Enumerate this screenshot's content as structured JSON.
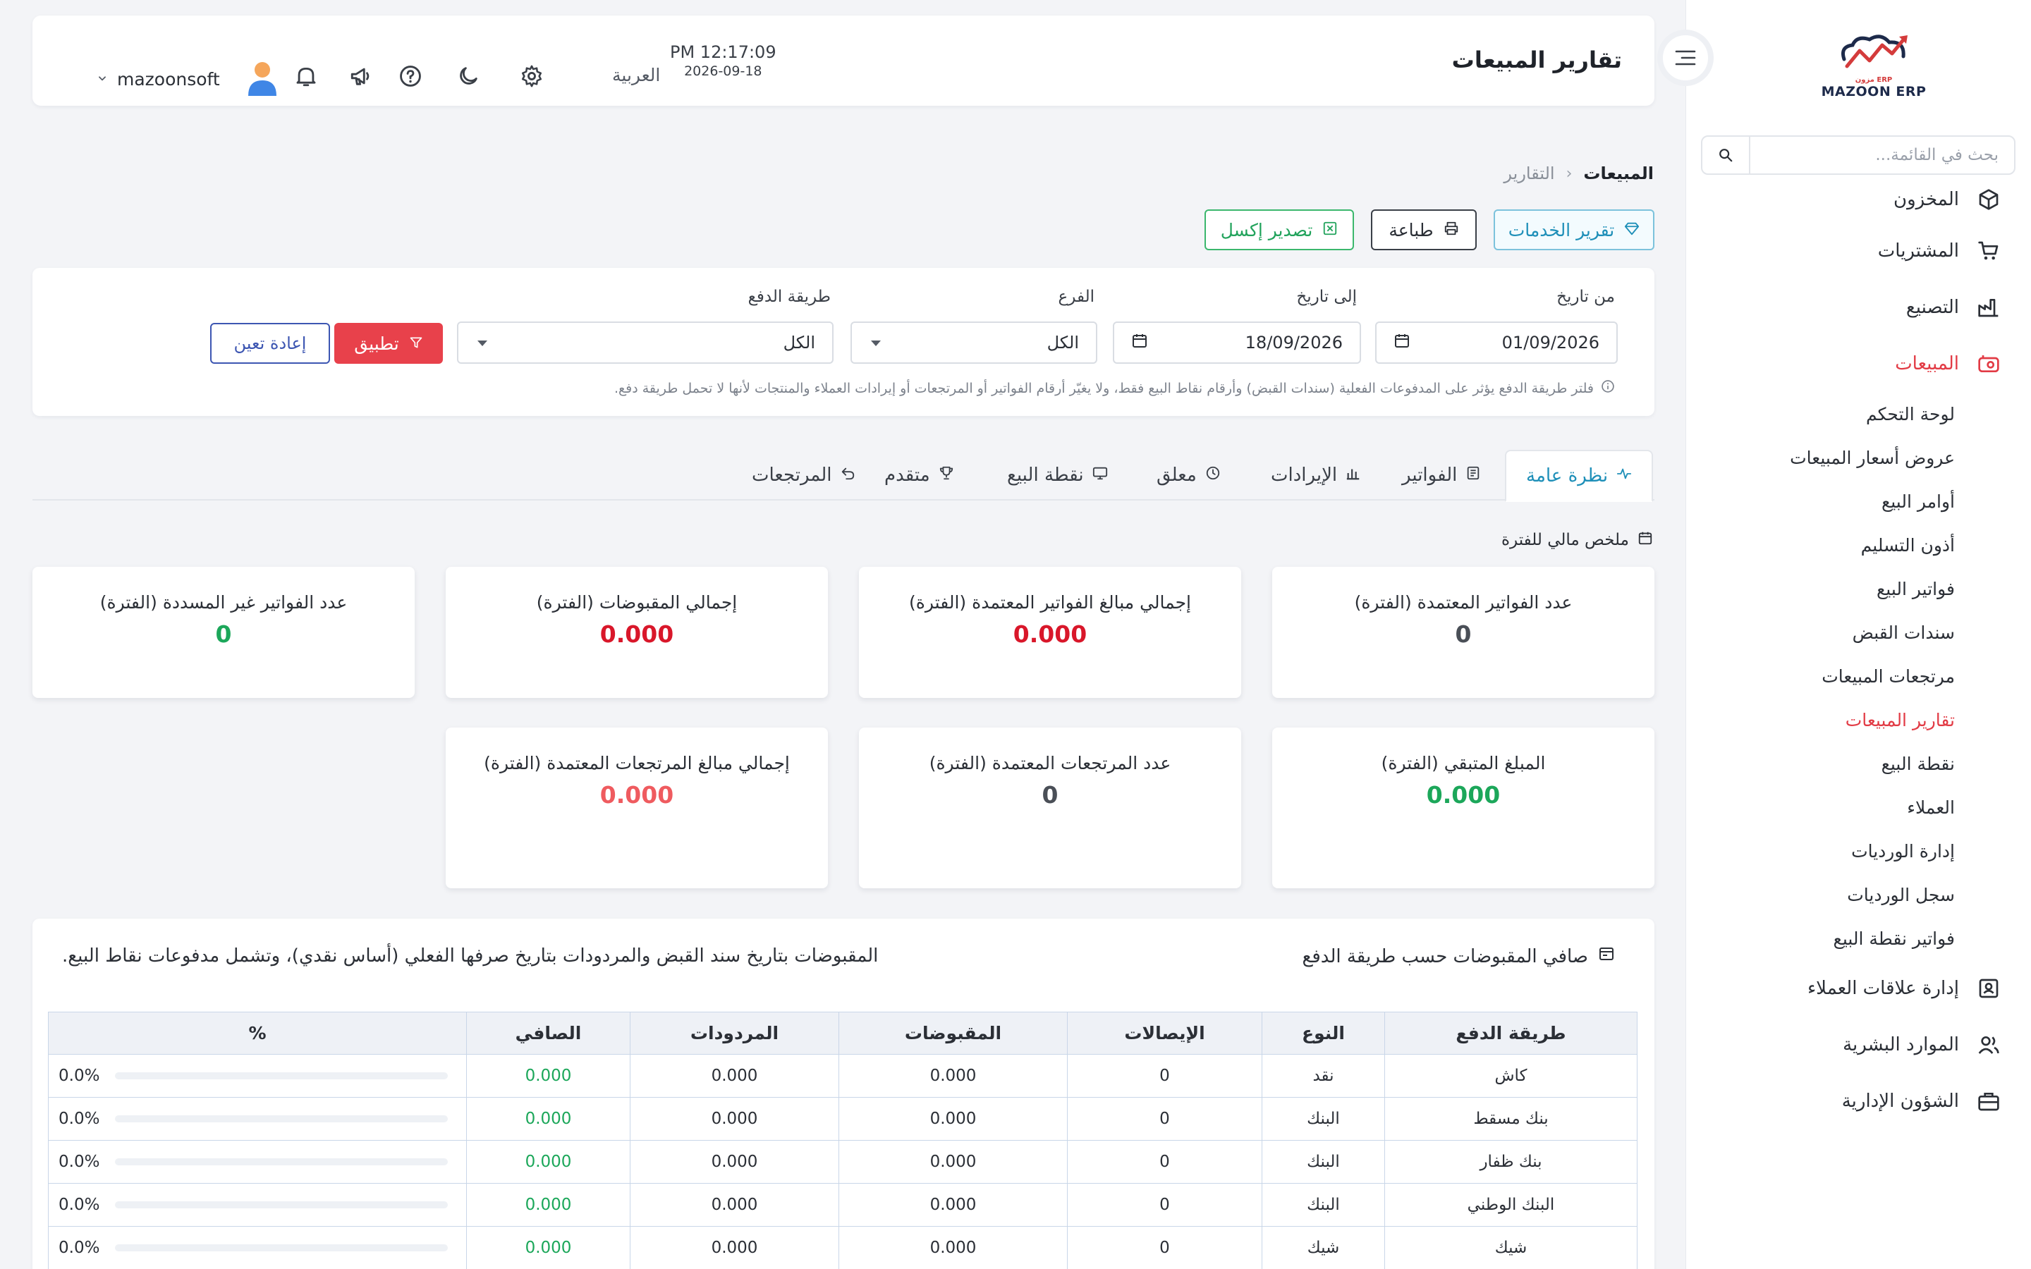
{
  "app": {
    "brand": "MAZOON ERP",
    "brand_arabic": "مزون ERP"
  },
  "sidebar": {
    "search_placeholder": "بحث في القائمة...",
    "items": [
      {
        "label": "المخزون",
        "icon": "box-icon"
      },
      {
        "label": "المشتريات",
        "icon": "cart-icon"
      },
      {
        "label": "التصنيع",
        "icon": "factory-icon"
      },
      {
        "label": "المبيعات",
        "icon": "sales-icon"
      },
      {
        "label": "إدارة علاقات العملاء",
        "icon": "contacts-icon"
      },
      {
        "label": "الموارد البشرية",
        "icon": "users-icon"
      },
      {
        "label": "الشؤون الإدارية",
        "icon": "briefcase-icon"
      }
    ],
    "sales_sub": [
      "لوحة التحكم",
      "عروض أسعار المبيعات",
      "أوامر البيع",
      "أذون التسليم",
      "فواتير البيع",
      "سندات القبض",
      "مرتجعات المبيعات",
      "تقارير المبيعات",
      "نقطة البيع",
      "العملاء",
      "إدارة الورديات",
      "سجل الورديات",
      "فواتير نقطة البيع"
    ],
    "active_color": "#e23b45"
  },
  "header": {
    "title": "تقارير المبيعات",
    "time": "PM 12:17:09",
    "date": "2026-09-18",
    "language": "العربية",
    "username": "mazoonsoft"
  },
  "breadcrumb": {
    "parent": "المبيعات",
    "current": "التقارير"
  },
  "actions": {
    "services_report": "تقرير الخدمات",
    "print": "طباعة",
    "export_excel": "تصدير إكسل"
  },
  "filters": {
    "from_label": "من تاريخ",
    "from_value": "01/09/2026",
    "to_label": "إلى تاريخ",
    "to_value": "18/09/2026",
    "branch_label": "الفرع",
    "branch_value": "الكل",
    "payment_label": "طريقة الدفع",
    "payment_value": "الكل",
    "apply": "تطبيق",
    "reset": "إعادة تعين",
    "note": "فلتر طريقة الدفع يؤثر على المدفوعات الفعلية (سندات القبض) وأرقام نقاط البيع فقط، ولا يغيّر أرقام الفواتير أو المرتجعات أو إيرادات العملاء والمنتجات لأنها لا تحمل طريقة دفع."
  },
  "tabs": [
    {
      "label": "نظرة عامة",
      "icon": "pulse-icon"
    },
    {
      "label": "الفواتير",
      "icon": "invoice-icon"
    },
    {
      "label": "الإيرادات",
      "icon": "bar-chart-icon"
    },
    {
      "label": "معلق",
      "icon": "clock-icon"
    },
    {
      "label": "نقطة البيع",
      "icon": "monitor-icon"
    },
    {
      "label": "متقدم",
      "icon": "trophy-icon"
    },
    {
      "label": "المرتجعات",
      "icon": "undo-icon"
    }
  ],
  "summary": {
    "heading": "ملخص مالي للفترة",
    "cards": [
      {
        "title": "عدد الفواتير المعتمدة (الفترة)",
        "value": "0",
        "tone": "dark"
      },
      {
        "title": "إجمالي مبالغ الفواتير المعتمدة (الفترة)",
        "value": "0.000",
        "tone": "red"
      },
      {
        "title": "إجمالي المقبوضات (الفترة)",
        "value": "0.000",
        "tone": "red"
      },
      {
        "title": "عدد الفواتير غير المسددة (الفترة)",
        "value": "0",
        "tone": "green"
      },
      {
        "title": "المبلغ المتبقي (الفترة)",
        "value": "0.000",
        "tone": "green"
      },
      {
        "title": "عدد المرتجعات المعتمدة (الفترة)",
        "value": "0",
        "tone": "dark"
      },
      {
        "title": "إجمالي مبالغ المرتجعات المعتمدة (الفترة)",
        "value": "0.000",
        "tone": "lightred"
      }
    ]
  },
  "payments": {
    "title": "صافي المقبوضات حسب طريقة الدفع",
    "note": "المقبوضات بتاريخ سند القبض والمردودات بتاريخ صرفها الفعلي (أساس نقدي)، وتشمل مدفوعات نقاط البيع.",
    "columns": [
      "طريقة الدفع",
      "النوع",
      "الإيصالات",
      "المقبوضات",
      "المردودات",
      "الصافي",
      "%"
    ],
    "rows": [
      {
        "method": "كاش",
        "type": "نقد",
        "receipts": "0",
        "collected": "0.000",
        "refunds": "0.000",
        "net": "0.000",
        "pct": "0.0%",
        "pct_value": 0
      },
      {
        "method": "بنك مسقط",
        "type": "البنك",
        "receipts": "0",
        "collected": "0.000",
        "refunds": "0.000",
        "net": "0.000",
        "pct": "0.0%",
        "pct_value": 0
      },
      {
        "method": "بنك ظفار",
        "type": "البنك",
        "receipts": "0",
        "collected": "0.000",
        "refunds": "0.000",
        "net": "0.000",
        "pct": "0.0%",
        "pct_value": 0
      },
      {
        "method": "البنك الوطني",
        "type": "البنك",
        "receipts": "0",
        "collected": "0.000",
        "refunds": "0.000",
        "net": "0.000",
        "pct": "0.0%",
        "pct_value": 0
      },
      {
        "method": "شيك",
        "type": "شيك",
        "receipts": "0",
        "collected": "0.000",
        "refunds": "0.000",
        "net": "0.000",
        "pct": "0.0%",
        "pct_value": 0
      }
    ]
  }
}
